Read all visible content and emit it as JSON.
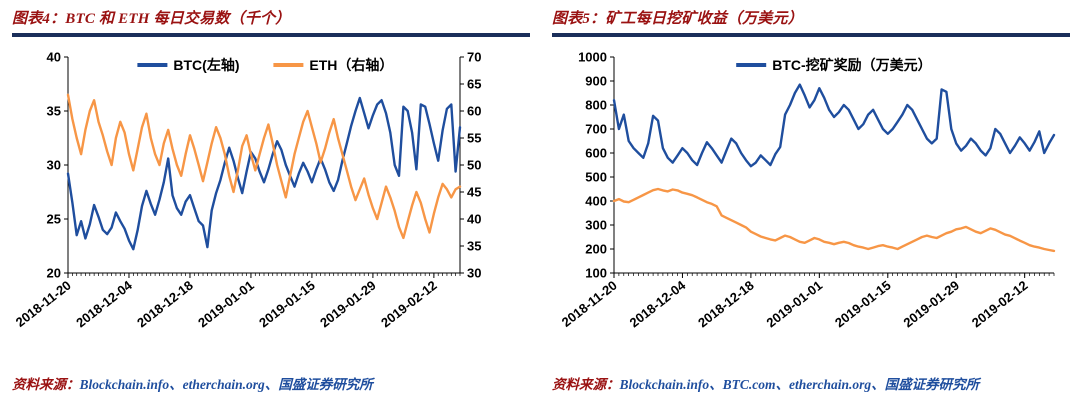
{
  "colors": {
    "line_blue": "#1F4E9E",
    "line_orange": "#F79646",
    "title_maroon": "#9A1212",
    "rule_navy": "#1A2E5A"
  },
  "panels": [
    {
      "title": "图表4：BTC 和 ETH 每日交易数（千个）",
      "source_label": "资料来源：",
      "source_text": "Blockchain.info、etherchain.org、国盛证券研究所"
    },
    {
      "title": "图表5：矿工每日挖矿收益（万美元）",
      "source_label": "资料来源：",
      "source_text": "Blockchain.info、BTC.com、etherchain.org、国盛证券研究所"
    }
  ],
  "chart_data": [
    {
      "type": "line",
      "title": "图表4：BTC 和 ETH 每日交易数（千个）",
      "categories": [
        "2018-11-20",
        "2018-12-04",
        "2018-12-18",
        "2019-01-01",
        "2019-01-15",
        "2019-01-29",
        "2019-02-12"
      ],
      "label_indices": [
        0,
        14,
        28,
        42,
        56,
        70,
        84
      ],
      "y_left": {
        "min": 20,
        "max": 40,
        "step": 5
      },
      "y_right": {
        "min": 30,
        "max": 70,
        "step": 5
      },
      "grid": false,
      "legend_position": "top-center",
      "legend": [
        {
          "label": "BTC(左轴)",
          "color": "#1F4E9E"
        },
        {
          "label": "ETH（右轴）",
          "color": "#F79646"
        }
      ],
      "series": [
        {
          "name": "BTC(左轴)",
          "axis": "left",
          "color": "#1F4E9E",
          "values": [
            29.2,
            26.5,
            23.5,
            24.8,
            23.2,
            24.5,
            26.3,
            25.2,
            24.0,
            23.6,
            24.2,
            25.6,
            24.8,
            24.1,
            23.0,
            22.2,
            24.0,
            26.2,
            27.6,
            26.4,
            25.4,
            26.8,
            28.4,
            30.6,
            27.2,
            26.0,
            25.4,
            26.6,
            27.2,
            26.0,
            24.8,
            24.4,
            22.4,
            25.8,
            27.4,
            28.6,
            30.2,
            31.6,
            30.4,
            28.8,
            27.4,
            29.4,
            31.2,
            30.6,
            29.4,
            28.4,
            29.6,
            31.0,
            32.2,
            31.4,
            30.0,
            29.0,
            28.0,
            29.2,
            30.2,
            29.4,
            28.4,
            29.6,
            30.6,
            29.6,
            28.4,
            27.6,
            28.6,
            30.4,
            32.0,
            33.6,
            35.0,
            36.2,
            34.8,
            33.4,
            34.6,
            35.6,
            36.0,
            34.8,
            33.0,
            30.0,
            29.0,
            35.4,
            35.0,
            33.0,
            29.6,
            35.6,
            35.4,
            33.8,
            32.0,
            30.4,
            33.2,
            35.2,
            35.6,
            29.4,
            33.5
          ]
        },
        {
          "name": "ETH（右轴）",
          "axis": "right",
          "color": "#F79646",
          "values": [
            63.0,
            58.5,
            55.0,
            52.0,
            56.5,
            60.0,
            62.0,
            58.0,
            55.5,
            52.5,
            50.0,
            55.0,
            58.0,
            56.0,
            52.0,
            49.0,
            53.0,
            57.0,
            59.5,
            55.0,
            52.0,
            50.0,
            54.0,
            56.5,
            53.0,
            50.0,
            48.0,
            52.0,
            55.5,
            53.0,
            50.0,
            47.0,
            50.5,
            54.0,
            57.0,
            55.0,
            52.0,
            48.0,
            45.0,
            49.0,
            53.5,
            55.5,
            52.0,
            49.0,
            52.0,
            55.0,
            57.5,
            54.0,
            50.0,
            47.0,
            44.0,
            48.0,
            52.0,
            55.0,
            58.0,
            60.0,
            57.0,
            54.0,
            50.5,
            53.0,
            56.0,
            58.5,
            55.0,
            52.0,
            49.0,
            46.0,
            43.5,
            45.5,
            47.5,
            44.5,
            42.0,
            40.0,
            43.0,
            46.0,
            44.0,
            41.5,
            38.5,
            36.5,
            39.5,
            42.5,
            45.0,
            43.0,
            40.0,
            37.5,
            41.0,
            44.0,
            46.5,
            45.5,
            44.0,
            45.5,
            46.0
          ]
        }
      ]
    },
    {
      "type": "line",
      "title": "图表5：矿工每日挖矿收益（万美元）",
      "categories": [
        "2018-11-20",
        "2018-12-04",
        "2018-12-18",
        "2019-01-01",
        "2019-01-15",
        "2019-01-29",
        "2019-02-12"
      ],
      "label_indices": [
        0,
        14,
        28,
        42,
        56,
        70,
        84
      ],
      "y_left": {
        "min": 100,
        "max": 1000,
        "step": 100
      },
      "grid": false,
      "legend_position": "top-center",
      "legend": [
        {
          "label": "BTC-挖矿奖励（万美元）",
          "color": "#1F4E9E"
        }
      ],
      "series": [
        {
          "name": "BTC-挖矿奖励（万美元）",
          "axis": "left",
          "color": "#1F4E9E",
          "values": [
            820,
            700,
            760,
            650,
            620,
            600,
            580,
            640,
            755,
            735,
            620,
            580,
            560,
            590,
            620,
            600,
            570,
            550,
            600,
            645,
            620,
            590,
            560,
            610,
            660,
            640,
            600,
            570,
            545,
            560,
            590,
            570,
            550,
            595,
            625,
            760,
            800,
            850,
            885,
            840,
            790,
            820,
            870,
            830,
            780,
            750,
            770,
            800,
            780,
            740,
            700,
            720,
            760,
            780,
            740,
            700,
            680,
            700,
            730,
            760,
            800,
            780,
            740,
            700,
            660,
            640,
            660,
            865,
            855,
            700,
            640,
            610,
            630,
            660,
            640,
            610,
            590,
            620,
            700,
            680,
            640,
            600,
            630,
            665,
            640,
            610,
            645,
            690,
            600,
            640,
            675
          ]
        },
        {
          "name": "",
          "axis": "left",
          "color": "#F79646",
          "values": [
            400,
            408,
            398,
            395,
            405,
            415,
            425,
            435,
            445,
            450,
            444,
            440,
            448,
            444,
            435,
            430,
            424,
            415,
            405,
            395,
            388,
            378,
            340,
            330,
            320,
            310,
            300,
            290,
            272,
            262,
            252,
            246,
            240,
            236,
            246,
            256,
            250,
            240,
            230,
            226,
            236,
            246,
            240,
            230,
            226,
            220,
            226,
            230,
            225,
            216,
            210,
            206,
            200,
            206,
            212,
            216,
            210,
            206,
            200,
            210,
            220,
            230,
            240,
            250,
            256,
            250,
            246,
            256,
            266,
            272,
            282,
            286,
            292,
            282,
            272,
            266,
            276,
            286,
            280,
            270,
            260,
            255,
            245,
            235,
            226,
            216,
            210,
            206,
            200,
            196,
            192
          ]
        }
      ]
    }
  ]
}
